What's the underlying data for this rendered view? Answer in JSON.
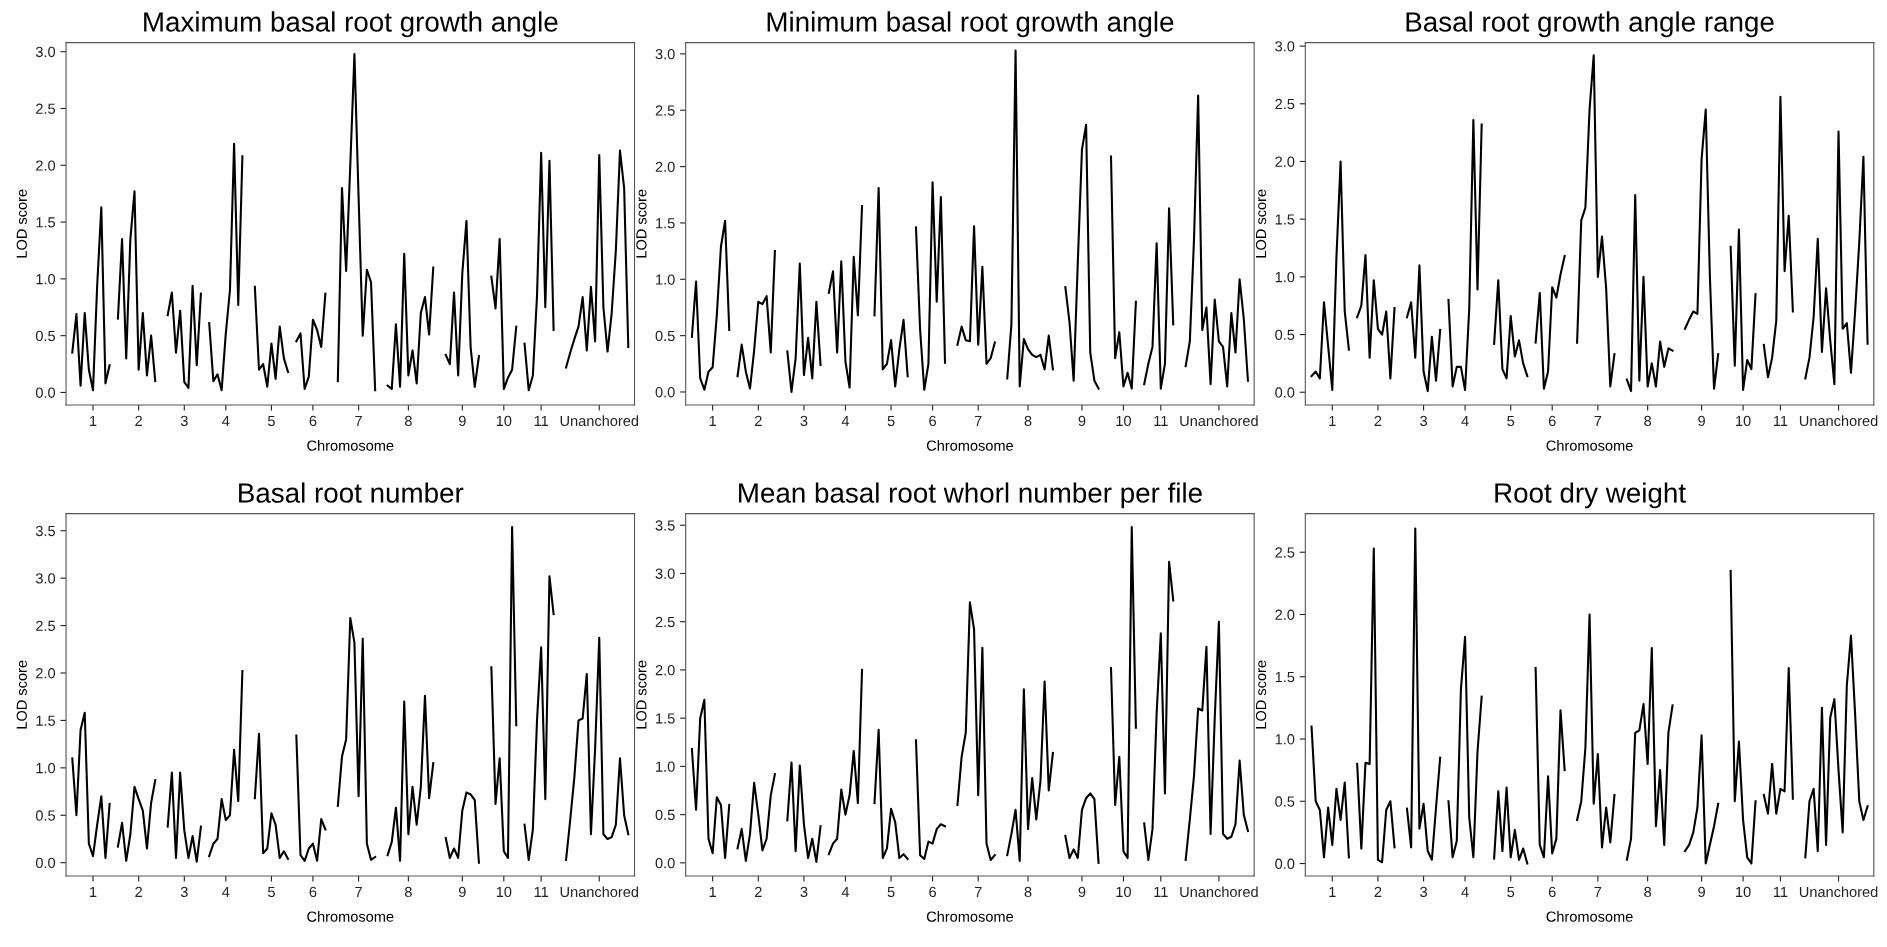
{
  "chart_data": [
    {
      "type": "line",
      "title": "Maximum basal root growth angle",
      "xlabel": "Chromosome",
      "ylabel": "LOD score",
      "ylim": [
        -0.11,
        3.08
      ],
      "categories": [
        null,
        null,
        null,
        null,
        null,
        null,
        "1",
        null,
        null,
        null,
        null,
        null,
        null,
        null,
        null,
        null,
        null,
        "2",
        null,
        null,
        null,
        null,
        null,
        null,
        null,
        null,
        null,
        null,
        "3",
        null,
        null,
        null,
        null,
        null,
        null,
        null,
        null,
        null,
        "4",
        null,
        null,
        null,
        null,
        null,
        null,
        null,
        null,
        null,
        null,
        "5",
        null,
        null,
        null,
        null,
        null,
        null,
        null,
        null,
        null,
        "6",
        null,
        null,
        null,
        null,
        null,
        null,
        null,
        null,
        null,
        null,
        "7",
        null,
        null,
        null,
        null,
        null,
        null,
        null,
        null,
        null,
        null,
        null,
        "8",
        null,
        null,
        null,
        null,
        null,
        null,
        null,
        null,
        null,
        null,
        null,
        null,
        "9",
        null,
        null,
        null,
        null,
        null,
        null,
        null,
        null,
        null,
        "10",
        null,
        null,
        null,
        null,
        null,
        null,
        null,
        null,
        "11",
        null,
        null,
        null,
        null,
        null,
        null,
        null,
        null,
        null,
        null,
        null,
        null,
        null,
        "Unanchored",
        null,
        null,
        null,
        null,
        null,
        null,
        null,
        null
      ],
      "yticks": [
        {
          "value": 0,
          "label": "0.0"
        },
        {
          "value": 0.5,
          "label": "0.5"
        },
        {
          "value": 1,
          "label": "1.0"
        },
        {
          "value": 1.5,
          "label": "1.5"
        },
        {
          "value": 2,
          "label": "2.0"
        },
        {
          "value": 2.5,
          "label": "2.5"
        },
        {
          "value": 3,
          "label": "3.0"
        }
      ],
      "series": [
        {
          "color": "#000000",
          "values": [
            null,
            0.35,
            0.69,
            0.06,
            0.7,
            0.2,
            0.02,
            0.94,
            1.63,
            0.08,
            0.24,
            null,
            0.65,
            1.35,
            0.3,
            1.35,
            1.77,
            0.2,
            0.7,
            0.15,
            0.5,
            0.1,
            null,
            null,
            0.68,
            0.88,
            0.35,
            0.72,
            0.09,
            0.04,
            0.94,
            0.24,
            0.87,
            null,
            0.61,
            0.1,
            0.16,
            0.02,
            0.52,
            0.9,
            2.19,
            0.77,
            2.08,
            null,
            null,
            0.93,
            0.2,
            0.25,
            0.05,
            0.43,
            0.12,
            0.58,
            0.3,
            0.18,
            null,
            0.45,
            0.52,
            0.03,
            0.14,
            0.64,
            0.55,
            0.4,
            0.87,
            null,
            null,
            0.1,
            1.8,
            1.07,
            2.0,
            2.98,
            1.72,
            0.5,
            1.08,
            0.97,
            0.02,
            null,
            null,
            0.06,
            0.03,
            0.6,
            0.05,
            1.22,
            0.15,
            0.37,
            0.08,
            0.7,
            0.84,
            0.51,
            1.1,
            null,
            null,
            0.33,
            0.25,
            0.88,
            0.15,
            1.05,
            1.51,
            0.4,
            0.05,
            0.32,
            null,
            null,
            1.02,
            0.74,
            1.35,
            0.03,
            0.13,
            0.2,
            0.58,
            null,
            0.43,
            0.02,
            0.15,
            0.85,
            2.11,
            0.75,
            2.04,
            0.55,
            null,
            null,
            0.22,
            0.35,
            0.47,
            0.58,
            0.84,
            0.37,
            0.93,
            0.45,
            2.09,
            0.75,
            0.36,
            0.7,
            1.25,
            2.13,
            1.8,
            0.4,
            null
          ]
        }
      ]
    },
    {
      "type": "line",
      "title": "Minimum basal root growth angle",
      "xlabel": "Chromosome",
      "ylabel": "LOD score",
      "ylim": [
        -0.115,
        3.1
      ],
      "categories": [
        null,
        null,
        null,
        null,
        null,
        null,
        "1",
        null,
        null,
        null,
        null,
        null,
        null,
        null,
        null,
        null,
        null,
        "2",
        null,
        null,
        null,
        null,
        null,
        null,
        null,
        null,
        null,
        null,
        "3",
        null,
        null,
        null,
        null,
        null,
        null,
        null,
        null,
        null,
        "4",
        null,
        null,
        null,
        null,
        null,
        null,
        null,
        null,
        null,
        null,
        "5",
        null,
        null,
        null,
        null,
        null,
        null,
        null,
        null,
        null,
        "6",
        null,
        null,
        null,
        null,
        null,
        null,
        null,
        null,
        null,
        null,
        "7",
        null,
        null,
        null,
        null,
        null,
        null,
        null,
        null,
        null,
        null,
        null,
        "8",
        null,
        null,
        null,
        null,
        null,
        null,
        null,
        null,
        null,
        null,
        null,
        null,
        "9",
        null,
        null,
        null,
        null,
        null,
        null,
        null,
        null,
        null,
        "10",
        null,
        null,
        null,
        null,
        null,
        null,
        null,
        null,
        "11",
        null,
        null,
        null,
        null,
        null,
        null,
        null,
        null,
        null,
        null,
        null,
        null,
        null,
        "Unanchored",
        null,
        null,
        null,
        null,
        null,
        null,
        null,
        null
      ],
      "yticks": [
        {
          "value": 0,
          "label": "0.0"
        },
        {
          "value": 0.5,
          "label": "0.5"
        },
        {
          "value": 1,
          "label": "1.0"
        },
        {
          "value": 1.5,
          "label": "1.5"
        },
        {
          "value": 2,
          "label": "2.0"
        },
        {
          "value": 2.5,
          "label": "2.5"
        },
        {
          "value": 3,
          "label": "3.0"
        }
      ],
      "series": [
        {
          "color": "#000000",
          "values": [
            null,
            0.49,
            0.98,
            0.12,
            0.02,
            0.18,
            0.22,
            0.68,
            1.29,
            1.52,
            0.55,
            null,
            0.14,
            0.42,
            0.18,
            0.03,
            0.37,
            0.8,
            0.78,
            0.85,
            0.35,
            1.25,
            null,
            null,
            0.36,
            0.0,
            0.3,
            1.14,
            0.15,
            0.48,
            0.12,
            0.8,
            0.24,
            null,
            0.88,
            1.07,
            0.35,
            1.16,
            0.27,
            0.04,
            1.2,
            0.68,
            1.65,
            null,
            null,
            0.68,
            1.81,
            0.2,
            0.25,
            0.46,
            0.05,
            0.38,
            0.64,
            0.14,
            null,
            1.46,
            0.55,
            0.02,
            0.25,
            1.86,
            0.8,
            1.73,
            0.26,
            null,
            null,
            0.42,
            0.58,
            0.46,
            0.45,
            1.47,
            0.42,
            1.11,
            0.25,
            0.3,
            0.44,
            null,
            null,
            0.12,
            0.6,
            3.03,
            0.05,
            0.47,
            0.38,
            0.33,
            0.31,
            0.33,
            0.2,
            0.5,
            0.2,
            null,
            null,
            0.93,
            0.62,
            0.1,
            1.15,
            2.15,
            2.37,
            0.35,
            0.1,
            0.03,
            null,
            null,
            2.09,
            0.3,
            0.53,
            0.05,
            0.17,
            0.03,
            0.8,
            null,
            0.07,
            0.25,
            0.4,
            1.32,
            0.03,
            0.25,
            1.63,
            0.6,
            null,
            null,
            0.23,
            0.45,
            1.35,
            2.63,
            0.55,
            0.75,
            0.07,
            0.82,
            0.45,
            0.4,
            0.05,
            0.7,
            0.35,
            1.0,
            0.65,
            0.1,
            null
          ]
        }
      ]
    },
    {
      "type": "line",
      "title": "Basal root growth angle range",
      "xlabel": "Chromosome",
      "ylabel": "LOD score",
      "ylim": [
        -0.11,
        3.03
      ],
      "categories": [
        null,
        null,
        null,
        null,
        null,
        null,
        "1",
        null,
        null,
        null,
        null,
        null,
        null,
        null,
        null,
        null,
        null,
        "2",
        null,
        null,
        null,
        null,
        null,
        null,
        null,
        null,
        null,
        null,
        "3",
        null,
        null,
        null,
        null,
        null,
        null,
        null,
        null,
        null,
        "4",
        null,
        null,
        null,
        null,
        null,
        null,
        null,
        null,
        null,
        null,
        "5",
        null,
        null,
        null,
        null,
        null,
        null,
        null,
        null,
        null,
        "6",
        null,
        null,
        null,
        null,
        null,
        null,
        null,
        null,
        null,
        null,
        "7",
        null,
        null,
        null,
        null,
        null,
        null,
        null,
        null,
        null,
        null,
        null,
        "8",
        null,
        null,
        null,
        null,
        null,
        null,
        null,
        null,
        null,
        null,
        null,
        null,
        "9",
        null,
        null,
        null,
        null,
        null,
        null,
        null,
        null,
        null,
        "10",
        null,
        null,
        null,
        null,
        null,
        null,
        null,
        null,
        "11",
        null,
        null,
        null,
        null,
        null,
        null,
        null,
        null,
        null,
        null,
        null,
        null,
        null,
        "Unanchored",
        null,
        null,
        null,
        null,
        null,
        null,
        null,
        null
      ],
      "yticks": [
        {
          "value": 0,
          "label": "0.0"
        },
        {
          "value": 0.5,
          "label": "0.5"
        },
        {
          "value": 1,
          "label": "1.0"
        },
        {
          "value": 1.5,
          "label": "1.5"
        },
        {
          "value": 2,
          "label": "2.0"
        },
        {
          "value": 2.5,
          "label": "2.5"
        },
        {
          "value": 3,
          "label": "3.0"
        }
      ],
      "series": [
        {
          "color": "#000000",
          "values": [
            null,
            0.14,
            0.18,
            0.12,
            0.78,
            0.4,
            0.02,
            1.17,
            2.0,
            0.7,
            0.37,
            null,
            0.65,
            0.75,
            1.19,
            0.3,
            0.97,
            0.55,
            0.5,
            0.7,
            0.12,
            0.73,
            null,
            null,
            0.65,
            0.78,
            0.3,
            1.1,
            0.18,
            0.01,
            0.48,
            0.1,
            0.54,
            null,
            0.8,
            0.05,
            0.22,
            0.22,
            0.02,
            0.72,
            2.36,
            0.89,
            2.32,
            null,
            null,
            0.42,
            0.97,
            0.2,
            0.12,
            0.66,
            0.31,
            0.45,
            0.25,
            0.14,
            null,
            0.43,
            0.86,
            0.03,
            0.18,
            0.91,
            0.82,
            1.02,
            1.18,
            null,
            null,
            0.43,
            1.49,
            1.6,
            2.45,
            2.92,
            1.0,
            1.35,
            0.9,
            0.05,
            0.33,
            null,
            null,
            0.11,
            0.01,
            1.71,
            0.1,
            1.0,
            0.05,
            0.25,
            0.05,
            0.44,
            0.22,
            0.38,
            0.36,
            null,
            null,
            0.55,
            0.63,
            0.7,
            0.68,
            2.02,
            2.45,
            1.0,
            0.03,
            0.33,
            null,
            null,
            1.26,
            0.23,
            1.41,
            0.02,
            0.28,
            0.2,
            0.85,
            null,
            0.41,
            0.13,
            0.3,
            0.62,
            2.56,
            1.05,
            1.53,
            0.7,
            null,
            null,
            0.12,
            0.3,
            0.65,
            1.33,
            0.35,
            0.9,
            0.45,
            0.07,
            2.26,
            0.55,
            0.6,
            0.17,
            0.7,
            1.3,
            2.04,
            0.42,
            null
          ]
        }
      ]
    },
    {
      "type": "line",
      "title": "Basal root number",
      "xlabel": "Chromosome",
      "ylabel": "LOD score",
      "ylim": [
        -0.14,
        3.68
      ],
      "categories": [
        null,
        null,
        null,
        null,
        null,
        null,
        "1",
        null,
        null,
        null,
        null,
        null,
        null,
        null,
        null,
        null,
        null,
        "2",
        null,
        null,
        null,
        null,
        null,
        null,
        null,
        null,
        null,
        null,
        "3",
        null,
        null,
        null,
        null,
        null,
        null,
        null,
        null,
        null,
        "4",
        null,
        null,
        null,
        null,
        null,
        null,
        null,
        null,
        null,
        null,
        "5",
        null,
        null,
        null,
        null,
        null,
        null,
        null,
        null,
        null,
        "6",
        null,
        null,
        null,
        null,
        null,
        null,
        null,
        null,
        null,
        null,
        "7",
        null,
        null,
        null,
        null,
        null,
        null,
        null,
        null,
        null,
        null,
        null,
        "8",
        null,
        null,
        null,
        null,
        null,
        null,
        null,
        null,
        null,
        null,
        null,
        null,
        "9",
        null,
        null,
        null,
        null,
        null,
        null,
        null,
        null,
        null,
        "10",
        null,
        null,
        null,
        null,
        null,
        null,
        null,
        null,
        "11",
        null,
        null,
        null,
        null,
        null,
        null,
        null,
        null,
        null,
        null,
        null,
        null,
        null,
        "Unanchored",
        null,
        null,
        null,
        null,
        null,
        null,
        null,
        null
      ],
      "yticks": [
        {
          "value": 0,
          "label": "0.0"
        },
        {
          "value": 0.5,
          "label": "0.5"
        },
        {
          "value": 1,
          "label": "1.0"
        },
        {
          "value": 1.5,
          "label": "1.5"
        },
        {
          "value": 2,
          "label": "2.0"
        },
        {
          "value": 2.5,
          "label": "2.5"
        },
        {
          "value": 3,
          "label": "3.0"
        },
        {
          "value": 3.5,
          "label": "3.5"
        }
      ],
      "series": [
        {
          "color": "#000000",
          "values": [
            null,
            1.1,
            0.5,
            1.4,
            1.58,
            0.2,
            0.07,
            0.4,
            0.7,
            0.05,
            0.62,
            null,
            0.17,
            0.42,
            0.02,
            0.3,
            0.8,
            0.67,
            0.55,
            0.15,
            0.63,
            0.87,
            null,
            null,
            0.38,
            0.95,
            0.05,
            0.95,
            0.34,
            0.05,
            0.28,
            0.01,
            0.38,
            null,
            0.07,
            0.2,
            0.25,
            0.67,
            0.45,
            0.5,
            1.19,
            0.65,
            2.02,
            null,
            null,
            0.68,
            1.36,
            0.1,
            0.15,
            0.52,
            0.4,
            0.05,
            0.12,
            0.04,
            null,
            1.34,
            0.08,
            0.02,
            0.15,
            0.2,
            0.02,
            0.46,
            0.35,
            null,
            null,
            0.6,
            1.12,
            1.3,
            2.58,
            2.32,
            0.7,
            2.36,
            0.2,
            0.03,
            0.06,
            null,
            null,
            0.08,
            0.22,
            0.58,
            0.02,
            1.7,
            0.3,
            0.8,
            0.4,
            0.8,
            1.76,
            0.68,
            1.05,
            null,
            null,
            0.26,
            0.05,
            0.15,
            0.05,
            0.55,
            0.74,
            0.72,
            0.66,
            0.0,
            null,
            null,
            2.06,
            0.62,
            1.1,
            0.12,
            0.05,
            3.54,
            1.45,
            null,
            0.4,
            0.03,
            0.35,
            1.5,
            2.27,
            0.67,
            3.02,
            2.62,
            null,
            null,
            0.03,
            0.45,
            0.9,
            1.5,
            1.52,
            1.99,
            0.3,
            1.2,
            2.37,
            0.3,
            0.25,
            0.27,
            0.4,
            1.1,
            0.5,
            0.3,
            null
          ]
        }
      ]
    },
    {
      "type": "line",
      "title": "Mean basal root whorl number per file",
      "xlabel": "Chromosome",
      "ylabel": "LOD score",
      "ylim": [
        -0.136,
        3.62
      ],
      "categories": [
        null,
        null,
        null,
        null,
        null,
        null,
        "1",
        null,
        null,
        null,
        null,
        null,
        null,
        null,
        null,
        null,
        null,
        "2",
        null,
        null,
        null,
        null,
        null,
        null,
        null,
        null,
        null,
        null,
        "3",
        null,
        null,
        null,
        null,
        null,
        null,
        null,
        null,
        null,
        "4",
        null,
        null,
        null,
        null,
        null,
        null,
        null,
        null,
        null,
        null,
        "5",
        null,
        null,
        null,
        null,
        null,
        null,
        null,
        null,
        null,
        "6",
        null,
        null,
        null,
        null,
        null,
        null,
        null,
        null,
        null,
        null,
        "7",
        null,
        null,
        null,
        null,
        null,
        null,
        null,
        null,
        null,
        null,
        null,
        "8",
        null,
        null,
        null,
        null,
        null,
        null,
        null,
        null,
        null,
        null,
        null,
        null,
        "9",
        null,
        null,
        null,
        null,
        null,
        null,
        null,
        null,
        null,
        "10",
        null,
        null,
        null,
        null,
        null,
        null,
        null,
        null,
        "11",
        null,
        null,
        null,
        null,
        null,
        null,
        null,
        null,
        null,
        null,
        null,
        null,
        null,
        "Unanchored",
        null,
        null,
        null,
        null,
        null,
        null,
        null,
        null
      ],
      "yticks": [
        {
          "value": 0,
          "label": "0.0"
        },
        {
          "value": 0.5,
          "label": "0.5"
        },
        {
          "value": 1,
          "label": "1.0"
        },
        {
          "value": 1.5,
          "label": "1.5"
        },
        {
          "value": 2,
          "label": "2.0"
        },
        {
          "value": 2.5,
          "label": "2.5"
        },
        {
          "value": 3,
          "label": "3.0"
        },
        {
          "value": 3.5,
          "label": "3.5"
        }
      ],
      "series": [
        {
          "color": "#000000",
          "values": [
            null,
            1.18,
            0.55,
            1.5,
            1.69,
            0.25,
            0.1,
            0.68,
            0.6,
            0.05,
            0.6,
            null,
            0.15,
            0.35,
            0.02,
            0.3,
            0.83,
            0.5,
            0.13,
            0.25,
            0.7,
            0.92,
            null,
            null,
            0.44,
            1.04,
            0.12,
            1.01,
            0.4,
            0.05,
            0.25,
            0.01,
            0.38,
            null,
            0.09,
            0.2,
            0.25,
            0.76,
            0.5,
            0.7,
            1.16,
            0.62,
            2.0,
            null,
            null,
            0.62,
            1.38,
            0.05,
            0.15,
            0.56,
            0.42,
            0.05,
            0.09,
            0.04,
            null,
            1.27,
            0.08,
            0.04,
            0.22,
            0.2,
            0.35,
            0.4,
            0.38,
            null,
            null,
            0.6,
            1.1,
            1.35,
            2.7,
            2.42,
            0.7,
            2.23,
            0.2,
            0.03,
            0.08,
            null,
            null,
            0.08,
            0.3,
            0.55,
            0.02,
            1.8,
            0.35,
            0.88,
            0.45,
            0.85,
            1.88,
            0.75,
            1.14,
            null,
            null,
            0.28,
            0.05,
            0.14,
            0.05,
            0.55,
            0.67,
            0.72,
            0.66,
            0.0,
            null,
            null,
            2.02,
            0.6,
            1.1,
            0.12,
            0.05,
            3.48,
            1.4,
            null,
            0.41,
            0.03,
            0.35,
            1.55,
            2.38,
            0.72,
            3.12,
            2.72,
            null,
            null,
            0.03,
            0.45,
            0.9,
            1.6,
            1.58,
            2.24,
            0.3,
            1.5,
            2.5,
            0.3,
            0.25,
            0.27,
            0.4,
            1.06,
            0.5,
            0.33,
            null
          ]
        }
      ]
    },
    {
      "type": "line",
      "title": "Root dry weight",
      "xlabel": "Chromosome",
      "ylabel": "LOD score",
      "ylim": [
        -0.1,
        2.81
      ],
      "categories": [
        null,
        null,
        null,
        null,
        null,
        null,
        "1",
        null,
        null,
        null,
        null,
        null,
        null,
        null,
        null,
        null,
        null,
        "2",
        null,
        null,
        null,
        null,
        null,
        null,
        null,
        null,
        null,
        null,
        "3",
        null,
        null,
        null,
        null,
        null,
        null,
        null,
        null,
        null,
        "4",
        null,
        null,
        null,
        null,
        null,
        null,
        null,
        null,
        null,
        null,
        "5",
        null,
        null,
        null,
        null,
        null,
        null,
        null,
        null,
        null,
        "6",
        null,
        null,
        null,
        null,
        null,
        null,
        null,
        null,
        null,
        null,
        "7",
        null,
        null,
        null,
        null,
        null,
        null,
        null,
        null,
        null,
        null,
        null,
        "8",
        null,
        null,
        null,
        null,
        null,
        null,
        null,
        null,
        null,
        null,
        null,
        null,
        "9",
        null,
        null,
        null,
        null,
        null,
        null,
        null,
        null,
        null,
        "10",
        null,
        null,
        null,
        null,
        null,
        null,
        null,
        null,
        "11",
        null,
        null,
        null,
        null,
        null,
        null,
        null,
        null,
        null,
        null,
        null,
        null,
        null,
        "Unanchored",
        null,
        null,
        null,
        null,
        null,
        null,
        null,
        null
      ],
      "yticks": [
        {
          "value": 0,
          "label": "0.0"
        },
        {
          "value": 0.5,
          "label": "0.5"
        },
        {
          "value": 1,
          "label": "1.0"
        },
        {
          "value": 1.5,
          "label": "1.5"
        },
        {
          "value": 2,
          "label": "2.0"
        },
        {
          "value": 2.5,
          "label": "2.5"
        }
      ],
      "series": [
        {
          "color": "#000000",
          "values": [
            null,
            1.1,
            0.5,
            0.43,
            0.05,
            0.45,
            0.15,
            0.6,
            0.35,
            0.65,
            0.05,
            null,
            0.8,
            0.12,
            0.81,
            0.8,
            2.53,
            0.03,
            0.01,
            0.43,
            0.5,
            0.13,
            null,
            null,
            0.44,
            0.13,
            2.69,
            0.28,
            0.48,
            0.1,
            0.03,
            0.45,
            0.85,
            null,
            0.5,
            0.05,
            0.18,
            1.4,
            1.82,
            0.37,
            0.05,
            0.9,
            1.34,
            null,
            null,
            0.04,
            0.58,
            0.1,
            0.61,
            0.05,
            0.27,
            0.03,
            0.12,
            0.0,
            null,
            1.57,
            0.15,
            0.05,
            0.7,
            0.08,
            0.2,
            1.23,
            0.75,
            null,
            null,
            0.35,
            0.5,
            0.93,
            2.0,
            0.48,
            0.88,
            0.13,
            0.45,
            0.17,
            0.55,
            null,
            null,
            0.03,
            0.2,
            1.05,
            1.07,
            1.28,
            0.8,
            1.73,
            0.3,
            0.75,
            0.15,
            1.05,
            1.27,
            null,
            null,
            0.1,
            0.15,
            0.25,
            0.45,
            1.03,
            0.0,
            0.15,
            0.3,
            0.48,
            null,
            null,
            2.35,
            0.5,
            0.98,
            0.35,
            0.05,
            0.0,
            0.5,
            null,
            0.55,
            0.4,
            0.8,
            0.4,
            0.6,
            0.58,
            1.57,
            0.52,
            null,
            null,
            0.05,
            0.5,
            0.6,
            0.1,
            1.25,
            0.15,
            1.17,
            1.32,
            0.75,
            0.25,
            1.43,
            1.83,
            1.2,
            0.5,
            0.35,
            0.46,
            null
          ]
        }
      ]
    }
  ]
}
